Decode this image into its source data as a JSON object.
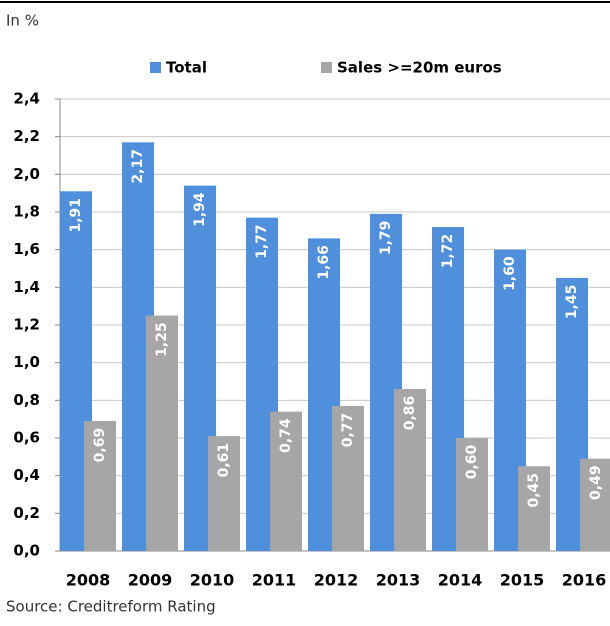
{
  "chart_data": {
    "type": "bar",
    "unit_note": "In %",
    "source": "Source: Creditreform Rating",
    "categories": [
      "2008",
      "2009",
      "2010",
      "2011",
      "2012",
      "2013",
      "2014",
      "2015",
      "2016"
    ],
    "series": [
      {
        "name": "Total",
        "color": "#4f8fdc",
        "values": [
          1.91,
          2.17,
          1.94,
          1.77,
          1.66,
          1.79,
          1.72,
          1.6,
          1.45
        ],
        "value_labels": [
          "1,91",
          "2,17",
          "1,94",
          "1,77",
          "1,66",
          "1,79",
          "1,72",
          "1,60",
          "1,45"
        ]
      },
      {
        "name": "Sales >=20m euros",
        "color": "#a6a6a6",
        "values": [
          0.69,
          1.25,
          0.61,
          0.74,
          0.77,
          0.86,
          0.6,
          0.45,
          0.49
        ],
        "value_labels": [
          "0,69",
          "1,25",
          "0,61",
          "0,74",
          "0,77",
          "0,86",
          "0,60",
          "0,45",
          "0,49"
        ]
      }
    ],
    "ylim": [
      0,
      2.4
    ],
    "yticks": [
      {
        "value": 0,
        "label": "0,0"
      },
      {
        "value": 0.2,
        "label": "0,2"
      },
      {
        "value": 0.4,
        "label": "0,4"
      },
      {
        "value": 0.6,
        "label": "0,6"
      },
      {
        "value": 0.8,
        "label": "0,8"
      },
      {
        "value": 1.0,
        "label": "1,0"
      },
      {
        "value": 1.2,
        "label": "1,2"
      },
      {
        "value": 1.4,
        "label": "1,4"
      },
      {
        "value": 1.6,
        "label": "1,6"
      },
      {
        "value": 1.8,
        "label": "1,8"
      },
      {
        "value": 2.0,
        "label": "2,0"
      },
      {
        "value": 2.2,
        "label": "2,2"
      },
      {
        "value": 2.4,
        "label": "2,4"
      }
    ],
    "grid": true
  }
}
